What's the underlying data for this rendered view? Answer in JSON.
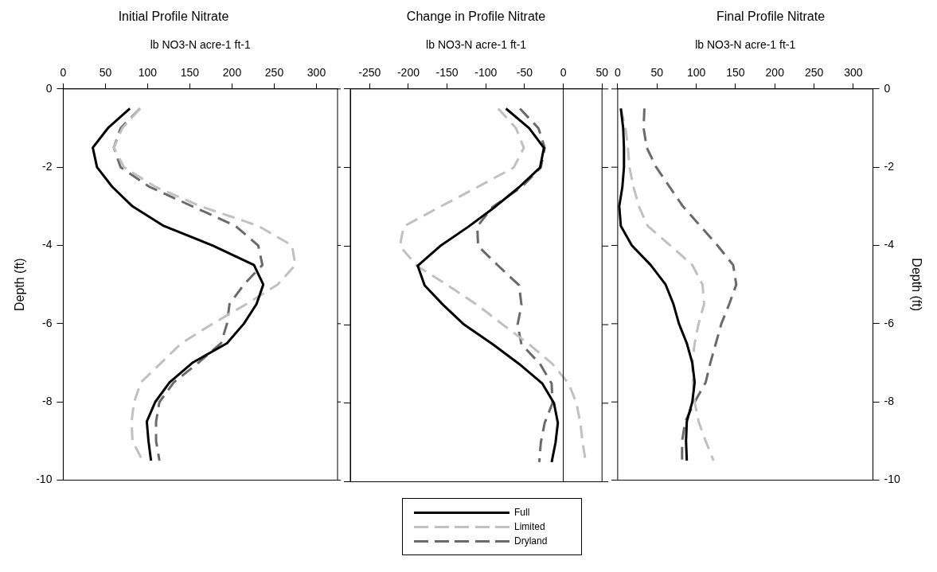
{
  "chart_data": [
    {
      "type": "line",
      "title": "Initial Profile Nitrate",
      "xlabel": "lb NO3-N acre-1 ft-1",
      "ylabel": "Depth (ft)",
      "xlim": [
        0,
        325
      ],
      "xticks": [
        0,
        50,
        100,
        150,
        200,
        250,
        300
      ],
      "ylim": [
        -10,
        0
      ],
      "yticks": [
        0,
        -2,
        -4,
        -6,
        -8,
        -10
      ],
      "grid": false,
      "series": [
        {
          "color": "#000000",
          "line_style": "solid",
          "x": [
            79,
            53,
            35,
            40,
            58,
            82,
            119,
            177,
            226,
            237,
            229,
            214,
            194,
            153,
            126,
            109,
            99,
            101,
            104
          ],
          "values": [
            -0.5,
            -1,
            -1.5,
            -2,
            -2.5,
            -3,
            -3.5,
            -4,
            -4.5,
            -5,
            -5.5,
            -6,
            -6.5,
            -7,
            -7.5,
            -8,
            -8.5,
            -9,
            -9.5
          ]
        },
        {
          "color": "#c0c0c0",
          "line_style": "dashed",
          "x": [
            91,
            70,
            60,
            72,
            109,
            163,
            231,
            271,
            275,
            254,
            217,
            177,
            140,
            116,
            92,
            84,
            81,
            82,
            94
          ],
          "values": [
            -0.5,
            -1,
            -1.5,
            -2,
            -2.5,
            -3,
            -3.5,
            -4,
            -4.5,
            -5,
            -5.5,
            -6,
            -6.5,
            -7,
            -7.5,
            -8,
            -8.5,
            -9,
            -9.5
          ]
        },
        {
          "color": "#6a6a6a",
          "line_style": "dashed",
          "x": [
            91,
            68,
            60,
            68,
            102,
            153,
            204,
            231,
            236,
            214,
            197,
            194,
            187,
            160,
            131,
            114,
            110,
            110,
            114
          ],
          "values": [
            -0.5,
            -1,
            -1.5,
            -2,
            -2.5,
            -3,
            -3.5,
            -4,
            -4.5,
            -5,
            -5.5,
            -6,
            -6.5,
            -7,
            -7.5,
            -8,
            -8.5,
            -9,
            -9.5
          ]
        }
      ]
    },
    {
      "type": "line",
      "title": "Change in Profile Nitrate",
      "xlabel": "lb NO3-N acre-1 ft-1",
      "xlim": [
        -275,
        50
      ],
      "xticks": [
        -250,
        -200,
        -150,
        -100,
        -50,
        0,
        50
      ],
      "ylim": [
        -10,
        0
      ],
      "yticks": [
        0,
        -2,
        -4,
        -6,
        -8,
        -10
      ],
      "tick_labels": "x",
      "grid": false,
      "legend": "bottom",
      "ref_lines": [
        {
          "axis": "x",
          "value": 0,
          "color": "#000000"
        }
      ],
      "series": [
        {
          "name": "Full",
          "color": "#000000",
          "line_style": "solid",
          "x": [
            -74,
            -44,
            -25,
            -30,
            -57,
            -88,
            -122,
            -159,
            -188,
            -179,
            -155,
            -128,
            -91,
            -57,
            -27,
            -12,
            -7,
            -10,
            -15
          ],
          "values": [
            -0.5,
            -1,
            -1.5,
            -2,
            -2.5,
            -3,
            -3.5,
            -4,
            -4.5,
            -5,
            -5.5,
            -6,
            -6.5,
            -7,
            -7.5,
            -8,
            -8.5,
            -9,
            -9.5
          ]
        },
        {
          "name": "Limited",
          "color": "#c0c0c0",
          "line_style": "dashed",
          "x": [
            -84,
            -61,
            -51,
            -64,
            -111,
            -159,
            -206,
            -211,
            -189,
            -149,
            -111,
            -78,
            -44,
            -14,
            7,
            17,
            22,
            25,
            29
          ],
          "values": [
            -0.5,
            -1,
            -1.5,
            -2,
            -2.5,
            -3,
            -3.5,
            -4,
            -4.5,
            -5,
            -5.5,
            -6,
            -6.5,
            -7,
            -7.5,
            -8,
            -8.5,
            -9,
            -9.5
          ]
        },
        {
          "name": "Dryland",
          "color": "#6a6a6a",
          "line_style": "dashed",
          "x": [
            -56,
            -32,
            -24,
            -29,
            -54,
            -91,
            -111,
            -110,
            -84,
            -57,
            -54,
            -59,
            -54,
            -30,
            -15,
            -14,
            -24,
            -29,
            -31
          ],
          "values": [
            -0.5,
            -1,
            -1.5,
            -2,
            -2.5,
            -3,
            -3.5,
            -4,
            -4.5,
            -5,
            -5.5,
            -6,
            -6.5,
            -7,
            -7.5,
            -8,
            -8.5,
            -9,
            -9.5
          ]
        }
      ]
    },
    {
      "type": "line",
      "title": "Final Profile Nitrate",
      "xlabel": "lb NO3-N acre-1 ft-1",
      "y2label": "Depth (ft)",
      "xlim": [
        0,
        325
      ],
      "xticks": [
        0,
        50,
        100,
        150,
        200,
        250,
        300
      ],
      "y2lim": [
        -10,
        0
      ],
      "y2ticks": [
        0,
        -2,
        -4,
        -6,
        -8,
        -10
      ],
      "grid": false,
      "series": [
        {
          "color": "#000000",
          "line_style": "solid",
          "axis": "y2",
          "x": [
            4,
            7,
            8,
            8,
            6,
            2,
            4,
            18,
            42,
            61,
            71,
            78,
            88,
            95,
            98,
            95,
            88,
            87,
            88
          ],
          "values": [
            -0.5,
            -1,
            -1.5,
            -2,
            -2.5,
            -3,
            -3.5,
            -4,
            -4.5,
            -5,
            -5.5,
            -6,
            -6.5,
            -7,
            -7.5,
            -8,
            -8.5,
            -9,
            -9.5
          ]
        },
        {
          "color": "#c0c0c0",
          "line_style": "dashed",
          "axis": "y2",
          "x": [
            4,
            10,
            13,
            15,
            20,
            27,
            38,
            67,
            95,
            108,
            110,
            103,
            98,
            95,
            96,
            98,
            103,
            112,
            122
          ],
          "values": [
            -0.5,
            -1,
            -1.5,
            -2,
            -2.5,
            -3,
            -3.5,
            -4,
            -4.5,
            -5,
            -5.5,
            -6,
            -6.5,
            -7,
            -7.5,
            -8,
            -8.5,
            -9,
            -9.5
          ]
        },
        {
          "color": "#6a6a6a",
          "line_style": "dashed",
          "axis": "y2",
          "x": [
            34,
            33,
            37,
            49,
            66,
            83,
            105,
            127,
            147,
            151,
            142,
            132,
            125,
            118,
            112,
            98,
            86,
            82,
            82
          ],
          "values": [
            -0.5,
            -1,
            -1.5,
            -2,
            -2.5,
            -3,
            -3.5,
            -4,
            -4.5,
            -5,
            -5.5,
            -6,
            -6.5,
            -7,
            -7.5,
            -8,
            -8.5,
            -9,
            -9.5
          ]
        }
      ]
    }
  ]
}
